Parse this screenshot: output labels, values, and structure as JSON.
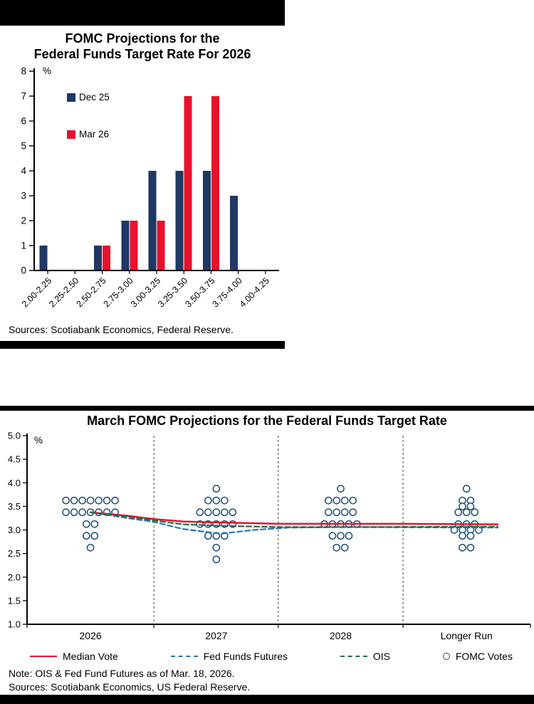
{
  "colors": {
    "navy": "#1F3864",
    "red": "#E8112D",
    "futures_blue": "#2E75B6",
    "ois_green": "#1E7145",
    "dot_blue": "#1F4E79",
    "axis": "#000000",
    "divider": "#000000"
  },
  "top_section": {
    "title_line1": "FOMC Projections for the",
    "title_line2": "Federal Funds Target Rate For 2026",
    "y_axis_unit": "%",
    "legend": [
      {
        "label": "Dec 25",
        "color": "#1F3864"
      },
      {
        "label": "Mar 26",
        "color": "#E8112D"
      }
    ],
    "sources": "Sources: Scotiabank Economics, Federal Reserve."
  },
  "bottom_section": {
    "title": "March FOMC Projections for the Federal Funds Target Rate",
    "y_axis_unit": "%",
    "legend": [
      {
        "label": "Median Vote",
        "swatch": "line-solid",
        "color": "#E8112D"
      },
      {
        "label": "Fed Funds Futures",
        "swatch": "line-dashed",
        "color": "#2E75B6"
      },
      {
        "label": "OIS",
        "swatch": "line-dashed",
        "color": "#1E7145"
      },
      {
        "label": "FOMC Votes",
        "swatch": "open-circle",
        "color": "#1F4E79"
      }
    ],
    "note": "Note: OIS & Fed Fund Futures as of Mar. 18, 2026.",
    "sources": "Sources: Scotiabank Economics, US Federal Reserve."
  },
  "chart_data": [
    {
      "type": "bar",
      "title": "FOMC Projections for the Federal Funds Target Rate For 2026",
      "ylabel": "%",
      "ylim": [
        0,
        8
      ],
      "ytick_step": 1,
      "grid": false,
      "legend_position": "upper-left-inside",
      "categories": [
        "2.00-2.25",
        "2.25-2.50",
        "2.50-2.75",
        "2.75-3.00",
        "3.00-3.25",
        "3.25-3.50",
        "3.50-3.75",
        "3.75-4.00",
        "4.00-4.25"
      ],
      "series": [
        {
          "name": "Dec 25",
          "color": "#1F3864",
          "values": [
            1,
            0,
            1,
            2,
            4,
            4,
            4,
            3,
            0
          ]
        },
        {
          "name": "Mar 26",
          "color": "#E8112D",
          "values": [
            0,
            0,
            1,
            2,
            2,
            7,
            7,
            0,
            0
          ]
        }
      ]
    },
    {
      "type": "scatter",
      "title": "March FOMC Projections for the Federal Funds Target Rate",
      "ylabel": "%",
      "ylim": [
        1.0,
        5.0
      ],
      "ytick_labels": [
        "5.0",
        "4.5",
        "4.0",
        "3.5",
        "3.0",
        "2.5",
        "2.0",
        "1.5",
        "1.0"
      ],
      "grid": false,
      "legend_position": "below",
      "categories": [
        "2026",
        "2027",
        "2028",
        "Longer Run"
      ],
      "fomc_votes": [
        {
          "category": "2026",
          "dots": [
            {
              "rate": 3.625,
              "count": 7
            },
            {
              "rate": 3.375,
              "count": 7
            },
            {
              "rate": 3.125,
              "count": 2
            },
            {
              "rate": 2.875,
              "count": 2
            },
            {
              "rate": 2.625,
              "count": 1
            }
          ]
        },
        {
          "category": "2027",
          "dots": [
            {
              "rate": 3.875,
              "count": 1
            },
            {
              "rate": 3.625,
              "count": 3
            },
            {
              "rate": 3.375,
              "count": 5
            },
            {
              "rate": 3.125,
              "count": 5
            },
            {
              "rate": 2.875,
              "count": 3
            },
            {
              "rate": 2.625,
              "count": 1
            },
            {
              "rate": 2.375,
              "count": 1
            }
          ]
        },
        {
          "category": "2028",
          "dots": [
            {
              "rate": 3.875,
              "count": 1
            },
            {
              "rate": 3.625,
              "count": 4
            },
            {
              "rate": 3.375,
              "count": 4
            },
            {
              "rate": 3.125,
              "count": 5
            },
            {
              "rate": 2.875,
              "count": 3
            },
            {
              "rate": 2.625,
              "count": 2
            }
          ]
        },
        {
          "category": "Longer Run",
          "dots": [
            {
              "rate": 3.875,
              "count": 1
            },
            {
              "rate": 3.625,
              "count": 2
            },
            {
              "rate": 3.5,
              "count": 2
            },
            {
              "rate": 3.375,
              "count": 3
            },
            {
              "rate": 3.125,
              "count": 3
            },
            {
              "rate": 3.0,
              "count": 4
            },
            {
              "rate": 2.875,
              "count": 2
            },
            {
              "rate": 2.625,
              "count": 2
            }
          ]
        }
      ],
      "lines": [
        {
          "name": "Median Vote",
          "style": "solid",
          "color": "#E8112D",
          "points": [
            [
              0.126,
              3.375
            ],
            [
              0.2,
              3.3
            ],
            [
              0.252,
              3.23
            ],
            [
              0.31,
              3.18
            ],
            [
              0.376,
              3.16
            ],
            [
              0.5,
              3.13
            ],
            [
              0.623,
              3.13
            ],
            [
              0.75,
              3.13
            ],
            [
              0.935,
              3.12
            ]
          ]
        },
        {
          "name": "Fed Funds Futures",
          "style": "dashed",
          "color": "#2E75B6",
          "points": [
            [
              0.126,
              3.375
            ],
            [
              0.2,
              3.25
            ],
            [
              0.252,
              3.17
            ],
            [
              0.31,
              3.02
            ],
            [
              0.385,
              2.92
            ],
            [
              0.45,
              3.0
            ],
            [
              0.52,
              3.05
            ],
            [
              0.623,
              3.06
            ],
            [
              0.935,
              3.05
            ]
          ]
        },
        {
          "name": "OIS",
          "style": "dashed",
          "color": "#1E7145",
          "points": [
            [
              0.126,
              3.375
            ],
            [
              0.2,
              3.28
            ],
            [
              0.252,
              3.2
            ],
            [
              0.31,
              3.12
            ],
            [
              0.376,
              3.09
            ],
            [
              0.5,
              3.06
            ],
            [
              0.623,
              3.06
            ],
            [
              0.935,
              3.07
            ]
          ]
        }
      ],
      "category_medians": {
        "2026": 3.375,
        "2027": 3.125,
        "2028": 3.125,
        "Longer Run": 3.125
      }
    }
  ]
}
